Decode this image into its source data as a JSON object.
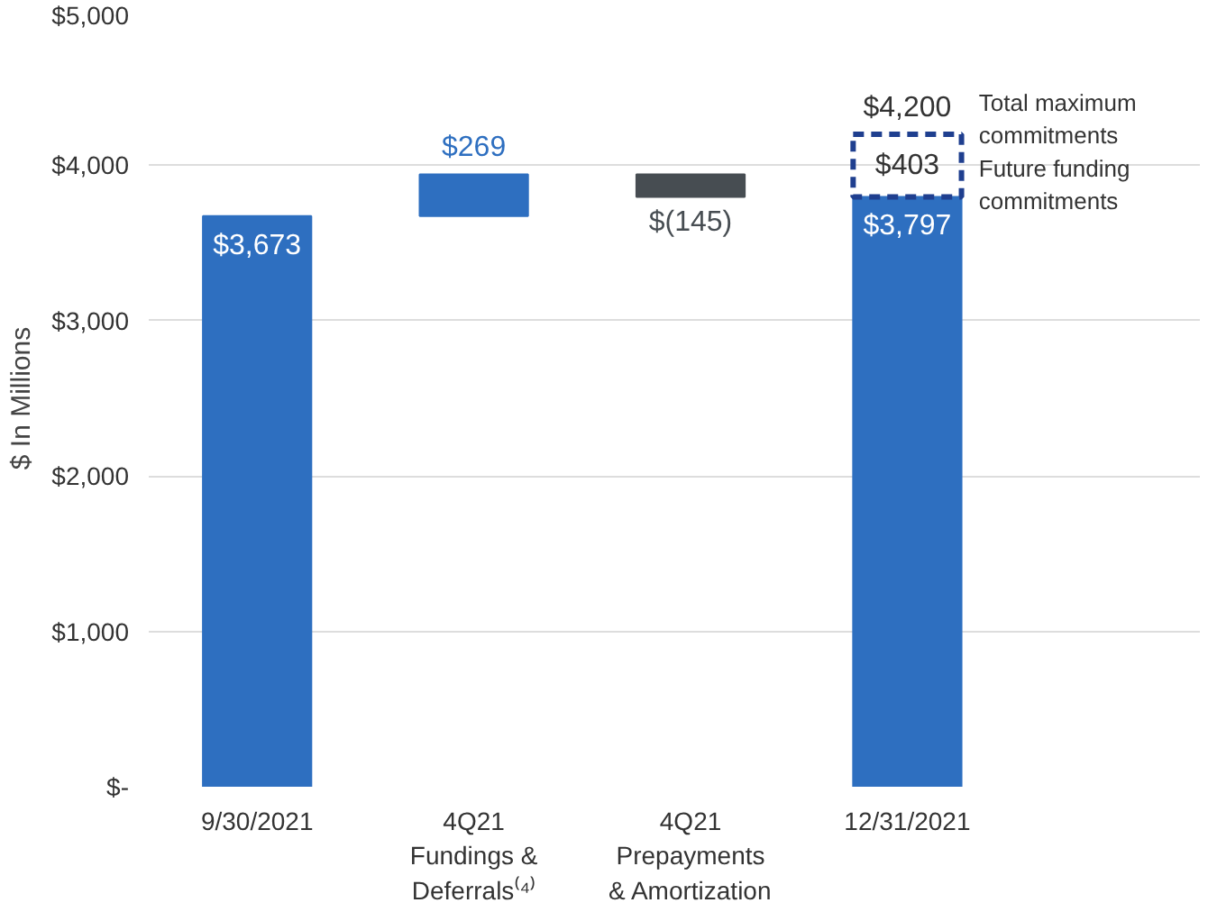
{
  "chart_data": {
    "type": "bar",
    "ylabel": "$ In Millions",
    "categories": [
      "9/30/2021",
      "4Q21\nFundings &\nDeferrals⁽⁴⁾",
      "4Q21\nPrepayments\n& Amortization",
      "12/31/2021"
    ],
    "series": [
      {
        "colors": [
          "#2e6fc0",
          "#2e6fc0",
          "#474d52",
          "#2e6fc0"
        ],
        "base": [
          0,
          3673,
          3942,
          0
        ],
        "values": [
          3673,
          269,
          -145,
          3797
        ],
        "value_labels": [
          "$3,673",
          "$269",
          "$(145)",
          "$3,797"
        ]
      },
      {
        "color": "#1f3f8f",
        "line_style": "dashed",
        "base": [
          null,
          null,
          null,
          3797
        ],
        "values": [
          null,
          null,
          null,
          403
        ],
        "value_labels": [
          null,
          null,
          null,
          "$403"
        ]
      }
    ],
    "totals": [
      null,
      null,
      null,
      "$4,200"
    ],
    "ylim": [
      0,
      5000
    ],
    "yticks": [
      {
        "value": 0,
        "label": "$-"
      },
      {
        "value": 1000,
        "label": "$1,000"
      },
      {
        "value": 2000,
        "label": "$2,000"
      },
      {
        "value": 3000,
        "label": "$3,000"
      },
      {
        "value": 4000,
        "label": "$4,000"
      },
      {
        "value": 5000,
        "label": "$5,000"
      }
    ],
    "grid": "y",
    "annotations": [
      "Total maximum\ncommitments",
      "Future funding\ncommitments"
    ]
  }
}
